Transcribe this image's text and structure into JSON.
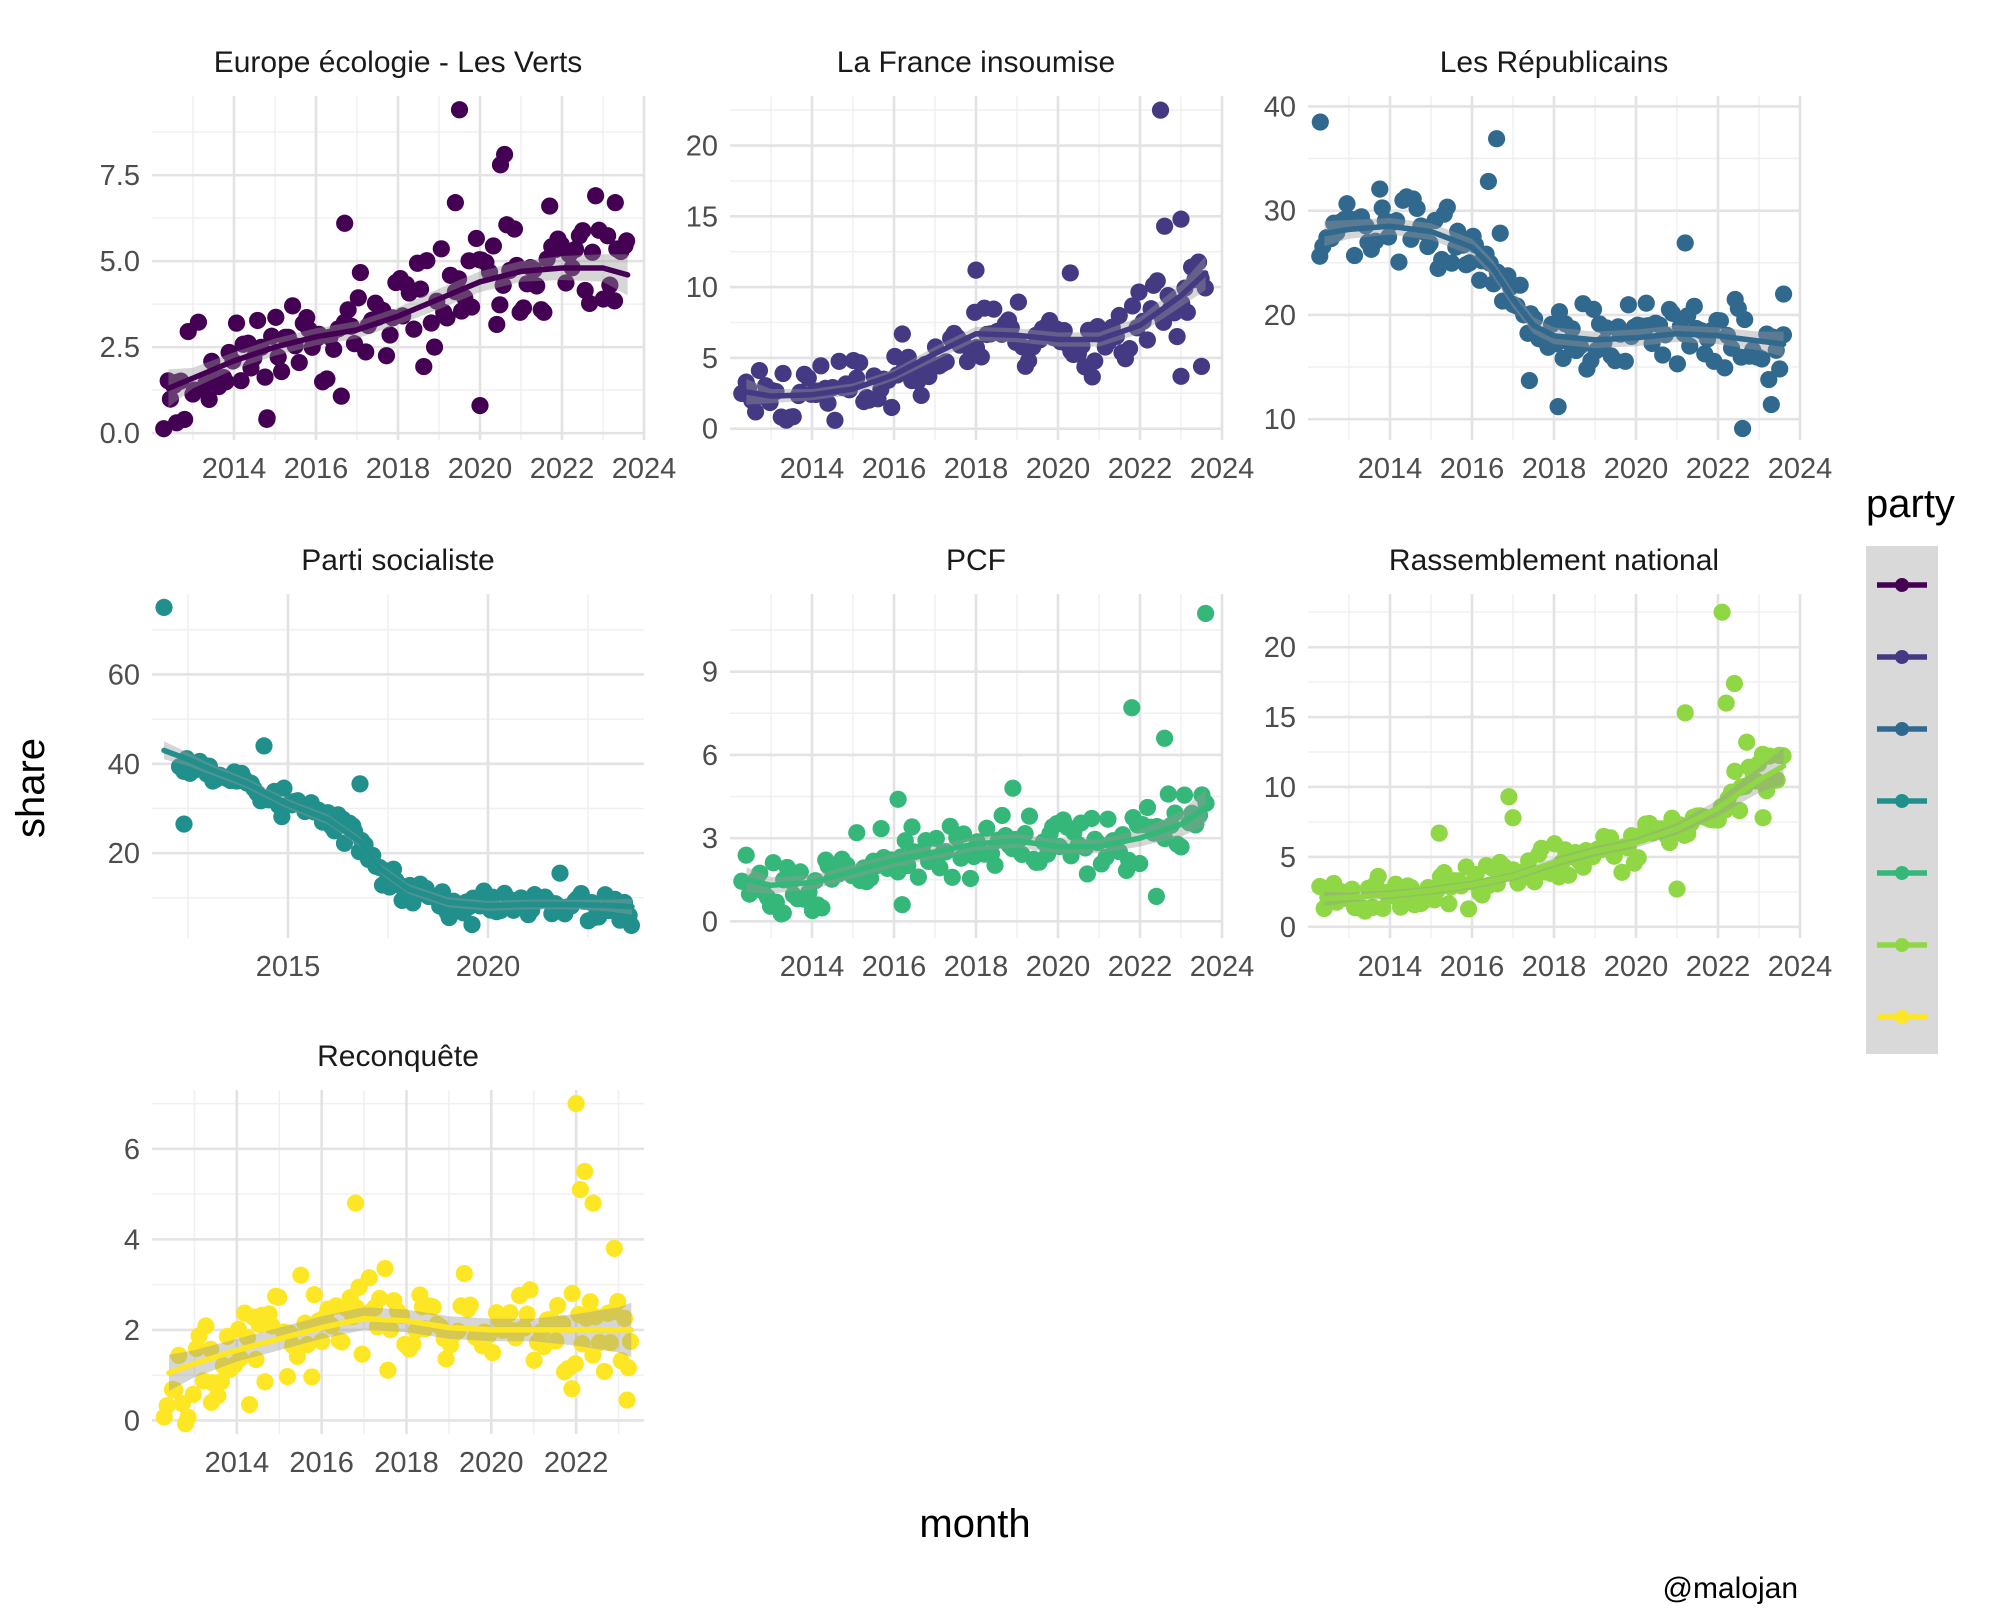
{
  "figure": {
    "xlabel": "month",
    "ylabel": "share",
    "legend_title": "party",
    "caption": "@malojan",
    "legend_position": "right",
    "grid": true
  },
  "chart_data": [
    {
      "type": "scatter",
      "title": "Europe écologie - Les Verts",
      "color": "#440154",
      "xlim": [
        2012.0,
        2024.0
      ],
      "ylim": [
        -0.2,
        9.8
      ],
      "x_ticks": [
        2014,
        2016,
        2018,
        2020,
        2022,
        2024
      ],
      "x_tick_labels": [
        "2014",
        "2016",
        "2018",
        "2020",
        "2022",
        "2024"
      ],
      "y_ticks": [
        0.0,
        2.5,
        5.0,
        7.5
      ],
      "y_tick_labels": [
        "0.0",
        "2.5",
        "5.0",
        "7.5"
      ],
      "trend": {
        "x": [
          2012.4,
          2013,
          2014,
          2015,
          2016,
          2017,
          2018,
          2019,
          2020,
          2021,
          2022,
          2023,
          2023.6
        ],
        "y": [
          1.3,
          1.6,
          2.1,
          2.5,
          2.8,
          3.0,
          3.4,
          3.9,
          4.4,
          4.7,
          4.8,
          4.8,
          4.6
        ],
        "band": [
          0.55,
          0.3,
          0.25,
          0.25,
          0.25,
          0.25,
          0.25,
          0.3,
          0.3,
          0.3,
          0.35,
          0.4,
          0.6
        ]
      },
      "points": {
        "seed": 11,
        "n": 135,
        "noise": 1.05,
        "outliers": [
          [
            2019.5,
            9.4
          ],
          [
            2020.6,
            8.1
          ],
          [
            2020.5,
            7.8
          ],
          [
            2019.4,
            6.7
          ],
          [
            2016.7,
            6.1
          ],
          [
            2020.0,
            0.8
          ],
          [
            2014.8,
            0.4
          ],
          [
            2012.6,
            0.3
          ],
          [
            2021.7,
            6.6
          ],
          [
            2023.3,
            6.7
          ]
        ]
      }
    },
    {
      "type": "scatter",
      "title": "La France insoumise",
      "color": "#443983",
      "xlim": [
        2012.0,
        2024.0
      ],
      "ylim": [
        -0.8,
        23.5
      ],
      "x_ticks": [
        2014,
        2016,
        2018,
        2020,
        2022,
        2024
      ],
      "x_tick_labels": [
        "2014",
        "2016",
        "2018",
        "2020",
        "2022",
        "2024"
      ],
      "y_ticks": [
        0,
        5,
        10,
        15,
        20
      ],
      "y_tick_labels": [
        "0",
        "5",
        "10",
        "15",
        "20"
      ],
      "trend": {
        "x": [
          2012.4,
          2013,
          2014,
          2015,
          2016,
          2017,
          2018,
          2019,
          2020,
          2021,
          2022,
          2023,
          2023.6
        ],
        "y": [
          2.6,
          2.3,
          2.4,
          2.8,
          3.8,
          5.3,
          6.7,
          6.6,
          6.3,
          6.3,
          7.3,
          9.4,
          11.0
        ],
        "band": [
          0.9,
          0.5,
          0.4,
          0.4,
          0.4,
          0.5,
          0.5,
          0.5,
          0.5,
          0.5,
          0.6,
          0.8,
          1.2
        ]
      },
      "points": {
        "seed": 23,
        "n": 135,
        "noise": 1.7,
        "outliers": [
          [
            2022.5,
            22.5
          ],
          [
            2022.6,
            14.3
          ],
          [
            2023.0,
            14.8
          ],
          [
            2020.3,
            11.0
          ],
          [
            2018.0,
            11.2
          ],
          [
            2023.5,
            4.4
          ],
          [
            2023.0,
            3.7
          ]
        ]
      }
    },
    {
      "type": "scatter",
      "title": "Les Républicains",
      "color": "#31688e",
      "xlim": [
        2012.0,
        2024.0
      ],
      "ylim": [
        8.0,
        41.0
      ],
      "x_ticks": [
        2014,
        2016,
        2018,
        2020,
        2022,
        2024
      ],
      "x_tick_labels": [
        "2014",
        "2016",
        "2018",
        "2020",
        "2022",
        "2024"
      ],
      "y_ticks": [
        10,
        20,
        30,
        40
      ],
      "y_tick_labels": [
        "10",
        "20",
        "30",
        "40"
      ],
      "trend": {
        "x": [
          2012.4,
          2013,
          2014,
          2015,
          2016,
          2016.5,
          2017,
          2017.5,
          2018,
          2019,
          2020,
          2021,
          2022,
          2023,
          2023.6
        ],
        "y": [
          27.8,
          28.2,
          28.5,
          28.0,
          26.5,
          24.5,
          21.5,
          19.0,
          18.0,
          17.6,
          17.8,
          18.2,
          18.0,
          17.5,
          17.2
        ],
        "band": [
          1.2,
          0.9,
          0.8,
          0.8,
          0.8,
          0.8,
          0.8,
          0.8,
          0.8,
          0.8,
          0.8,
          0.8,
          0.8,
          0.9,
          1.2
        ]
      },
      "points": {
        "seed": 37,
        "n": 135,
        "noise": 2.3,
        "outliers": [
          [
            2012.3,
            38.5
          ],
          [
            2016.6,
            36.9
          ],
          [
            2016.4,
            32.8
          ],
          [
            2017.4,
            13.7
          ],
          [
            2018.1,
            11.2
          ],
          [
            2022.6,
            9.1
          ],
          [
            2023.3,
            11.4
          ],
          [
            2021.2,
            26.9
          ],
          [
            2023.6,
            22.0
          ]
        ]
      }
    },
    {
      "type": "scatter",
      "title": "Parti socialiste",
      "color": "#21908c",
      "xlim": [
        2011.6,
        2023.9
      ],
      "ylim": [
        1.0,
        78.0
      ],
      "x_ticks": [
        2015,
        2020
      ],
      "x_tick_labels": [
        "2015",
        "2020"
      ],
      "y_ticks": [
        20,
        40,
        60
      ],
      "y_tick_labels": [
        "20",
        "40",
        "60"
      ],
      "trend": {
        "x": [
          2011.9,
          2012.5,
          2013,
          2014,
          2015,
          2016,
          2016.8,
          2017.3,
          2018,
          2019,
          2020,
          2021,
          2022,
          2023,
          2023.6
        ],
        "y": [
          43.0,
          41.0,
          39.0,
          35.5,
          31.0,
          27.5,
          22.5,
          16.5,
          12.0,
          9.0,
          8.2,
          8.5,
          8.5,
          8.3,
          8.0
        ],
        "band": [
          2.0,
          1.5,
          1.2,
          1.1,
          1.1,
          1.1,
          1.1,
          1.1,
          1.1,
          1.1,
          1.1,
          1.1,
          1.1,
          1.3,
          1.8
        ]
      },
      "points": {
        "seed": 53,
        "n": 135,
        "noise": 2.5,
        "outliers": [
          [
            2011.9,
            75.0
          ],
          [
            2012.4,
            26.5
          ],
          [
            2014.4,
            44.0
          ],
          [
            2016.8,
            35.5
          ],
          [
            2021.8,
            15.5
          ],
          [
            2023.3,
            5.0
          ],
          [
            2019.6,
            4.0
          ]
        ]
      }
    },
    {
      "type": "scatter",
      "title": "PCF",
      "color": "#35b779",
      "xlim": [
        2012.0,
        2024.0
      ],
      "ylim": [
        -0.6,
        11.8
      ],
      "x_ticks": [
        2014,
        2016,
        2018,
        2020,
        2022,
        2024
      ],
      "x_tick_labels": [
        "2014",
        "2016",
        "2018",
        "2020",
        "2022",
        "2024"
      ],
      "y_ticks": [
        0,
        3,
        6,
        9
      ],
      "y_tick_labels": [
        "0",
        "3",
        "6",
        "9"
      ],
      "trend": {
        "x": [
          2012.4,
          2013,
          2014,
          2015,
          2016,
          2017,
          2018,
          2019,
          2020,
          2021,
          2022,
          2023,
          2023.6
        ],
        "y": [
          1.5,
          1.3,
          1.4,
          1.8,
          2.2,
          2.5,
          2.8,
          2.9,
          2.7,
          2.7,
          3.0,
          3.5,
          4.1
        ],
        "band": [
          0.45,
          0.3,
          0.25,
          0.25,
          0.25,
          0.25,
          0.25,
          0.25,
          0.25,
          0.25,
          0.3,
          0.45,
          0.65
        ]
      },
      "points": {
        "seed": 71,
        "n": 135,
        "noise": 0.75,
        "outliers": [
          [
            2023.6,
            11.1
          ],
          [
            2021.8,
            7.7
          ],
          [
            2022.6,
            6.6
          ],
          [
            2018.9,
            4.8
          ],
          [
            2016.1,
            4.4
          ],
          [
            2013.3,
            0.3
          ],
          [
            2016.2,
            0.6
          ],
          [
            2022.4,
            0.9
          ]
        ]
      }
    },
    {
      "type": "scatter",
      "title": "Rassemblement national",
      "color": "#8fd744",
      "xlim": [
        2012.0,
        2024.0
      ],
      "ylim": [
        -0.8,
        23.8
      ],
      "x_ticks": [
        2014,
        2016,
        2018,
        2020,
        2022,
        2024
      ],
      "x_tick_labels": [
        "2014",
        "2016",
        "2018",
        "2020",
        "2022",
        "2024"
      ],
      "y_ticks": [
        0,
        5,
        10,
        15,
        20
      ],
      "y_tick_labels": [
        "0",
        "5",
        "10",
        "15",
        "20"
      ],
      "trend": {
        "x": [
          2012.4,
          2013,
          2014,
          2015,
          2016,
          2017,
          2018,
          2019,
          2020,
          2021,
          2022,
          2023,
          2023.6
        ],
        "y": [
          2.0,
          2.1,
          2.3,
          2.6,
          3.0,
          3.6,
          4.6,
          5.4,
          6.0,
          7.0,
          8.5,
          10.5,
          11.5
        ],
        "band": [
          0.5,
          0.35,
          0.3,
          0.3,
          0.3,
          0.3,
          0.35,
          0.35,
          0.35,
          0.4,
          0.6,
          0.9,
          1.3
        ]
      },
      "points": {
        "seed": 89,
        "n": 135,
        "noise": 1.1,
        "outliers": [
          [
            2022.1,
            22.5
          ],
          [
            2022.4,
            17.4
          ],
          [
            2022.2,
            16.0
          ],
          [
            2021.2,
            15.3
          ],
          [
            2015.2,
            6.7
          ],
          [
            2016.9,
            9.3
          ],
          [
            2017.0,
            7.8
          ],
          [
            2022.7,
            13.2
          ],
          [
            2021.0,
            2.7
          ],
          [
            2023.1,
            7.8
          ]
        ]
      }
    },
    {
      "type": "scatter",
      "title": "Reconquête",
      "color": "#fde725",
      "xlim": [
        2012.0,
        2023.6
      ],
      "ylim": [
        -0.3,
        7.3
      ],
      "x_ticks": [
        2014,
        2016,
        2018,
        2020,
        2022
      ],
      "x_tick_labels": [
        "2014",
        "2016",
        "2018",
        "2020",
        "2022"
      ],
      "y_ticks": [
        0,
        2,
        4,
        6
      ],
      "y_tick_labels": [
        "0",
        "2",
        "4",
        "6"
      ],
      "trend": {
        "x": [
          2012.4,
          2013,
          2014,
          2015,
          2016,
          2017,
          2018,
          2019,
          2020,
          2021,
          2022,
          2023,
          2023.3
        ],
        "y": [
          1.05,
          1.25,
          1.55,
          1.8,
          2.05,
          2.25,
          2.2,
          2.05,
          2.0,
          2.0,
          2.0,
          2.0,
          2.0
        ],
        "band": [
          0.4,
          0.3,
          0.25,
          0.25,
          0.25,
          0.25,
          0.25,
          0.25,
          0.25,
          0.25,
          0.35,
          0.5,
          0.6
        ]
      },
      "points": {
        "seed": 97,
        "n": 135,
        "noise": 0.75,
        "outliers": [
          [
            2022.0,
            7.0
          ],
          [
            2022.2,
            5.5
          ],
          [
            2022.1,
            5.1
          ],
          [
            2022.4,
            4.8
          ],
          [
            2016.8,
            4.8
          ],
          [
            2022.9,
            3.8
          ],
          [
            2013.4,
            0.4
          ],
          [
            2014.3,
            0.35
          ],
          [
            2023.2,
            0.45
          ],
          [
            2021.9,
            0.7
          ]
        ]
      }
    }
  ]
}
